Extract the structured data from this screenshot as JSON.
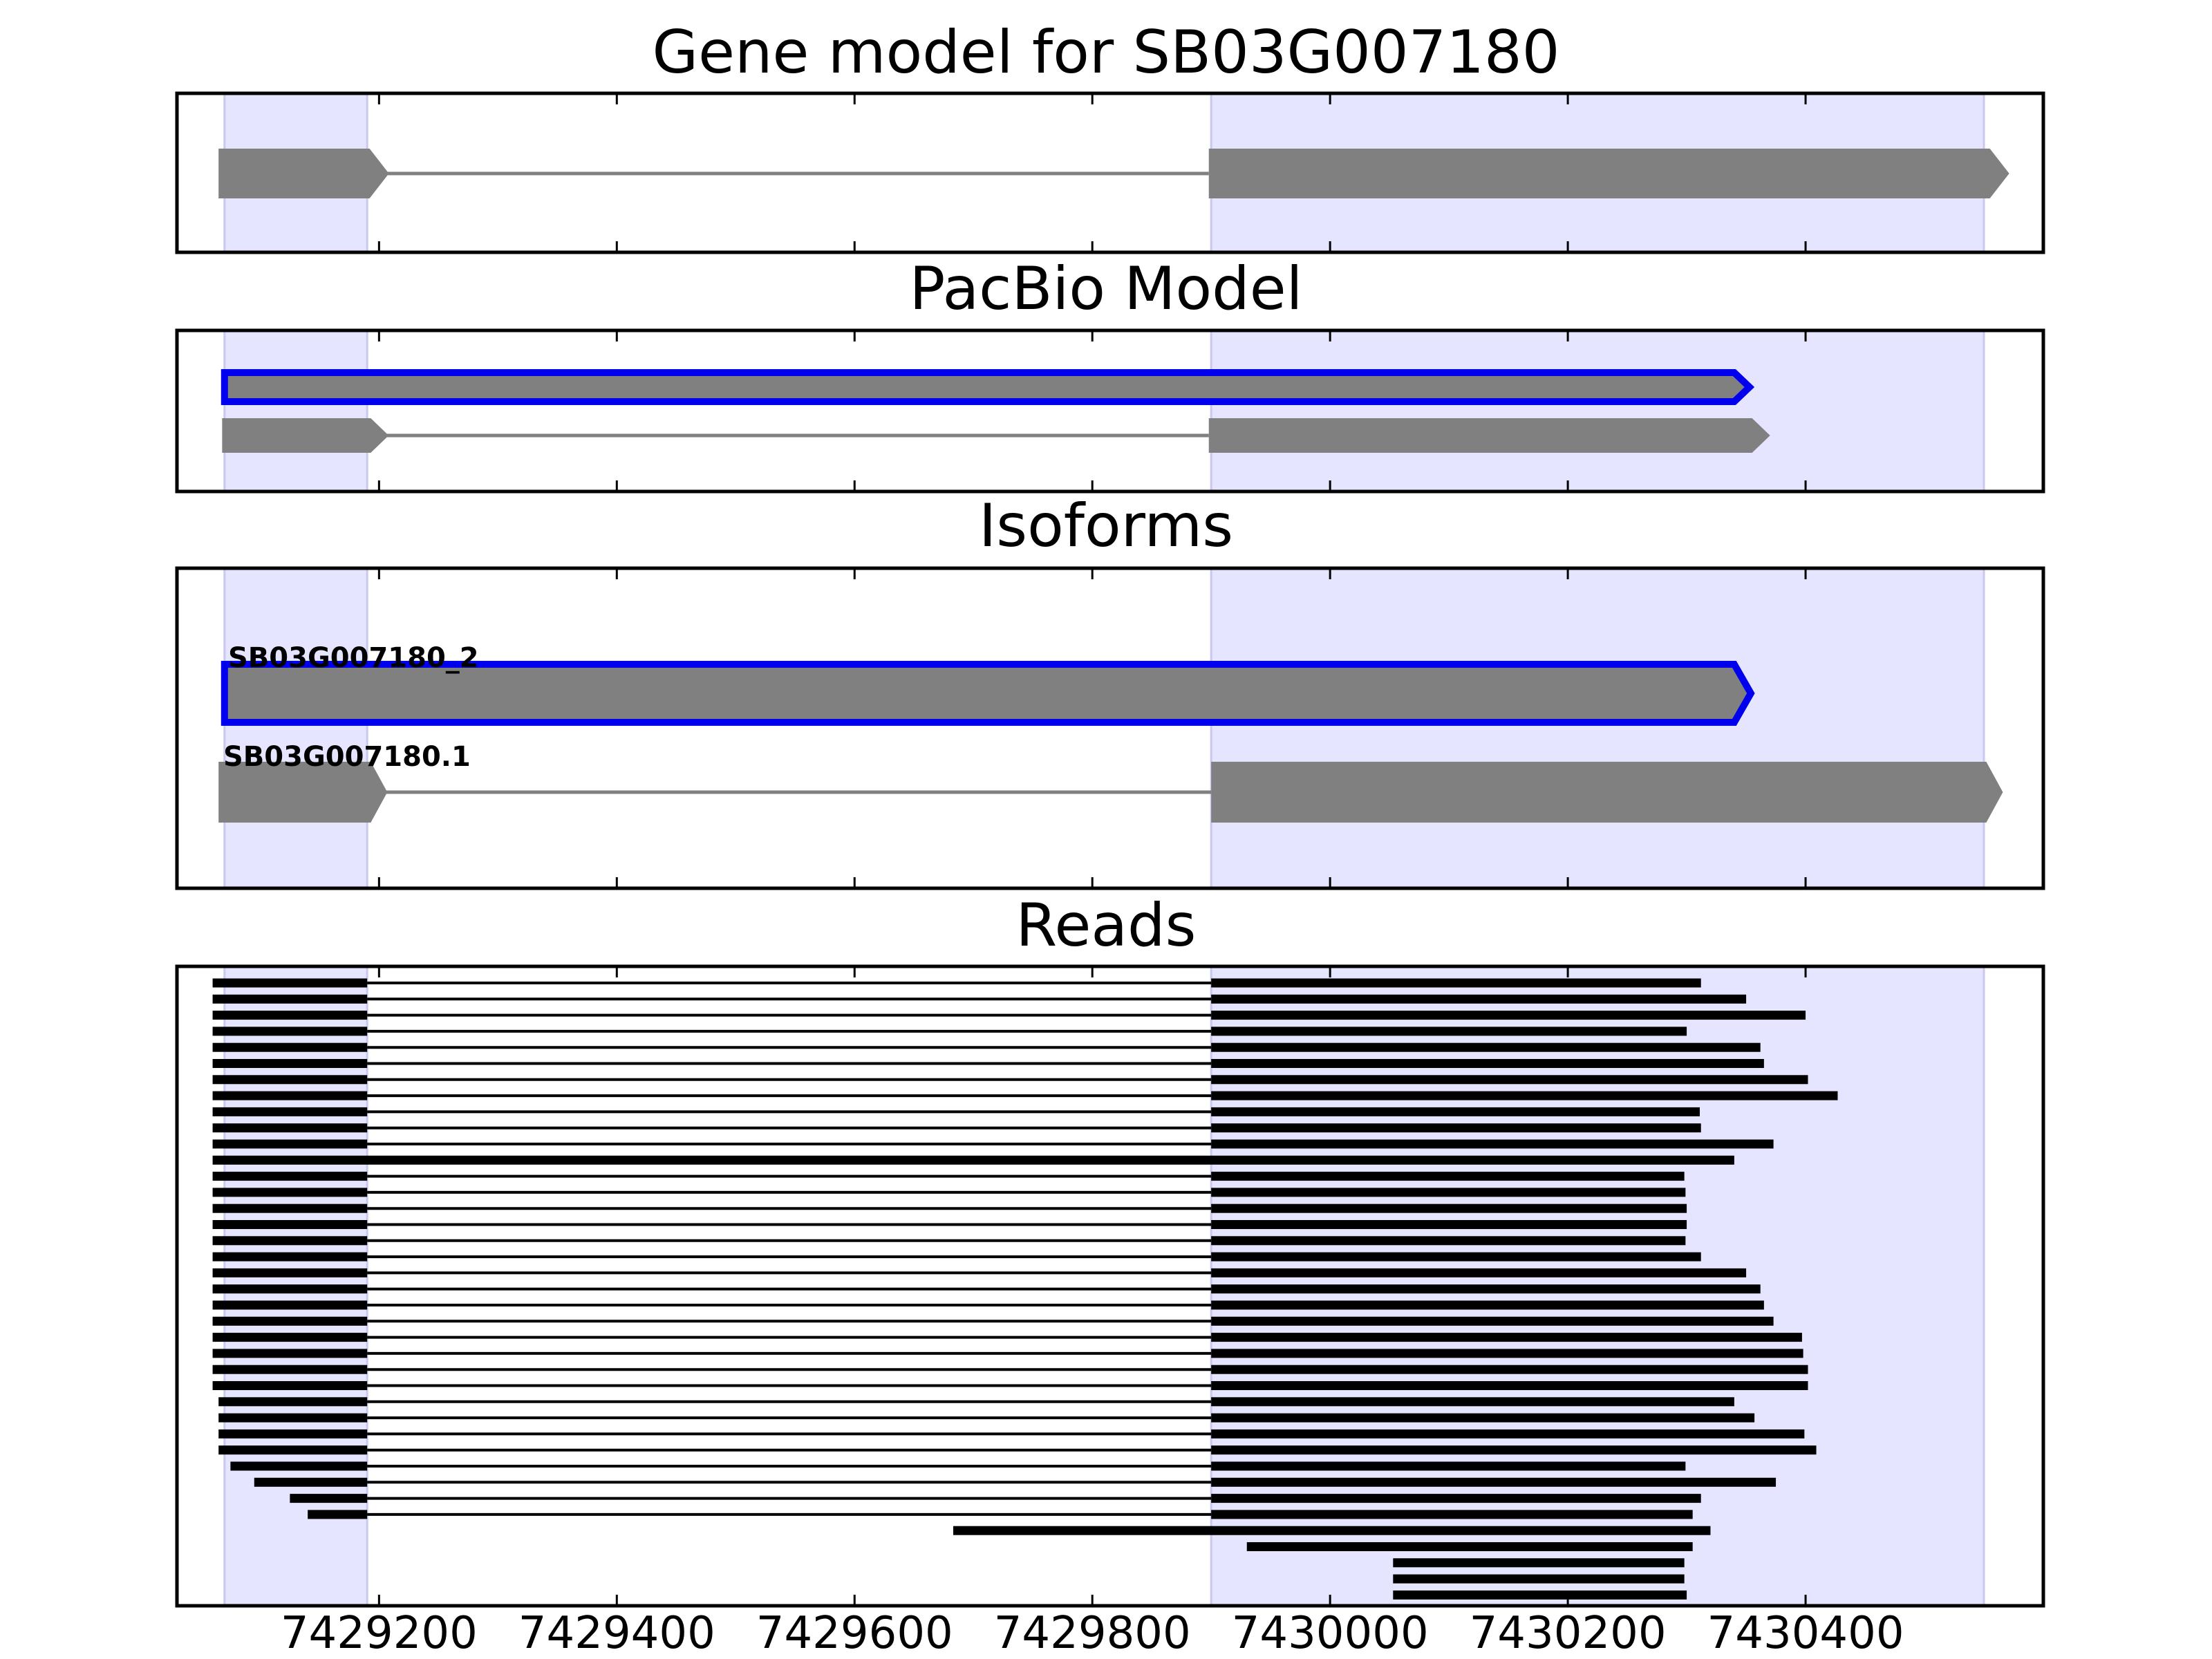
{
  "chart_data": {
    "type": "gene-track",
    "x_ticks": [
      7429200,
      7429400,
      7429600,
      7429800,
      7430000,
      7430200,
      7430400
    ],
    "xlim": [
      7429030,
      7430600
    ],
    "exon_regions": [
      [
        7429070,
        7429190
      ],
      [
        7429900,
        7430550
      ]
    ],
    "colors": {
      "feature": "#808080",
      "highlight": "#0000ee",
      "region": "#e5e5ff",
      "read": "#000000"
    },
    "panels": [
      {
        "id": "gene-model",
        "title": "Gene model for SB03G007180",
        "tracks": [
          {
            "label": "",
            "highlight": false,
            "exons": [
              [
                7429065,
                7429192
              ],
              [
                7429898,
                7430555
              ]
            ]
          }
        ]
      },
      {
        "id": "pacbio-model",
        "title": "PacBio Model",
        "tracks": [
          {
            "label": "",
            "highlight": true,
            "exons": [
              [
                7429070,
                7430340
              ]
            ]
          },
          {
            "label": "",
            "highlight": false,
            "exons": [
              [
                7429068,
                7429193
              ],
              [
                7429898,
                7430355
              ]
            ]
          }
        ]
      },
      {
        "id": "isoforms",
        "title": "Isoforms",
        "tracks": [
          {
            "label": "SB03G007180_2",
            "highlight": true,
            "exons": [
              [
                7429070,
                7430340
              ]
            ]
          },
          {
            "label": "SB03G007180.1",
            "highlight": false,
            "exons": [
              [
                7429065,
                7429193
              ],
              [
                7429900,
                7430552
              ]
            ]
          }
        ]
      },
      {
        "id": "reads",
        "title": "Reads",
        "reads": [
          [
            [
              7429060,
              7429190
            ],
            [
              7429900,
              7430312
            ]
          ],
          [
            [
              7429060,
              7429190
            ],
            [
              7429900,
              7430350
            ]
          ],
          [
            [
              7429060,
              7429190
            ],
            [
              7429900,
              7430400
            ]
          ],
          [
            [
              7429060,
              7429190
            ],
            [
              7429900,
              7430300
            ]
          ],
          [
            [
              7429060,
              7429190
            ],
            [
              7429900,
              7430362
            ]
          ],
          [
            [
              7429060,
              7429190
            ],
            [
              7429900,
              7430365
            ]
          ],
          [
            [
              7429060,
              7429190
            ],
            [
              7429900,
              7430402
            ]
          ],
          [
            [
              7429060,
              7429190
            ],
            [
              7429900,
              7430427
            ]
          ],
          [
            [
              7429060,
              7429190
            ],
            [
              7429900,
              7430311
            ]
          ],
          [
            [
              7429060,
              7429190
            ],
            [
              7429900,
              7430312
            ]
          ],
          [
            [
              7429060,
              7429190
            ],
            [
              7429900,
              7430373
            ]
          ],
          [
            [
              7429060,
              7430340
            ]
          ],
          [
            [
              7429060,
              7429190
            ],
            [
              7429900,
              7430298
            ]
          ],
          [
            [
              7429060,
              7429190
            ],
            [
              7429900,
              7430299
            ]
          ],
          [
            [
              7429060,
              7429190
            ],
            [
              7429900,
              7430300
            ]
          ],
          [
            [
              7429060,
              7429190
            ],
            [
              7429900,
              7430300
            ]
          ],
          [
            [
              7429060,
              7429190
            ],
            [
              7429900,
              7430299
            ]
          ],
          [
            [
              7429060,
              7429190
            ],
            [
              7429900,
              7430312
            ]
          ],
          [
            [
              7429060,
              7429190
            ],
            [
              7429900,
              7430350
            ]
          ],
          [
            [
              7429060,
              7429190
            ],
            [
              7429900,
              7430362
            ]
          ],
          [
            [
              7429060,
              7429190
            ],
            [
              7429900,
              7430365
            ]
          ],
          [
            [
              7429060,
              7429190
            ],
            [
              7429900,
              7430373
            ]
          ],
          [
            [
              7429060,
              7429190
            ],
            [
              7429900,
              7430397
            ]
          ],
          [
            [
              7429060,
              7429190
            ],
            [
              7429900,
              7430398
            ]
          ],
          [
            [
              7429060,
              7429190
            ],
            [
              7429900,
              7430402
            ]
          ],
          [
            [
              7429060,
              7429190
            ],
            [
              7429900,
              7430402
            ]
          ],
          [
            [
              7429065,
              7429190
            ],
            [
              7429900,
              7430340
            ]
          ],
          [
            [
              7429065,
              7429190
            ],
            [
              7429900,
              7430357
            ]
          ],
          [
            [
              7429065,
              7429190
            ],
            [
              7429900,
              7430399
            ]
          ],
          [
            [
              7429065,
              7429190
            ],
            [
              7429900,
              7430409
            ]
          ],
          [
            [
              7429075,
              7429190
            ],
            [
              7429900,
              7430299
            ]
          ],
          [
            [
              7429095,
              7429190
            ],
            [
              7429900,
              7430375
            ]
          ],
          [
            [
              7429125,
              7429190
            ],
            [
              7429900,
              7430312
            ]
          ],
          [
            [
              7429140,
              7429190
            ],
            [
              7429900,
              7430305
            ]
          ],
          [
            [
              7429683,
              7430320
            ]
          ],
          [
            [
              7429930,
              7430305
            ]
          ],
          [
            [
              7430053,
              7430298
            ]
          ],
          [
            [
              7430053,
              7430298
            ]
          ],
          [
            [
              7430053,
              7430300
            ]
          ]
        ]
      }
    ]
  }
}
